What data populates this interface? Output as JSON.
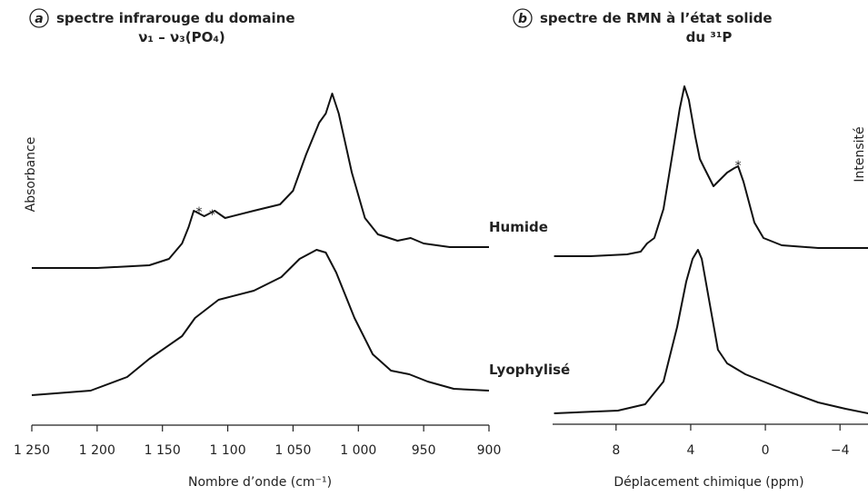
{
  "chart_data": [
    {
      "type": "line",
      "panel_label": "a",
      "title": [
        "spectre infrarouge du domaine",
        "ν₁ – ν₃(PO₄)"
      ],
      "xlabel": "Nombre d’onde (cm⁻¹)",
      "ylabel": "Absorbance",
      "xlim": [
        1250,
        900
      ],
      "ylim": [
        0,
        400
      ],
      "xticks": [
        {
          "value": 1250,
          "label": "1 250"
        },
        {
          "value": 1200,
          "label": "1 200"
        },
        {
          "value": 1150,
          "label": "1 150"
        },
        {
          "value": 1100,
          "label": "1 100"
        },
        {
          "value": 1050,
          "label": "1 050"
        },
        {
          "value": 1000,
          "label": "1 000"
        },
        950,
        900
      ],
      "series": [
        {
          "name": "Humide",
          "color": "#111",
          "x": [
            1250,
            1200,
            1160,
            1145,
            1135,
            1130,
            1126,
            1118,
            1110,
            1102,
            1080,
            1060,
            1050,
            1040,
            1030,
            1025,
            1020,
            1015,
            1005,
            995,
            985,
            970,
            960,
            950,
            930,
            900
          ],
          "values": [
            173,
            173,
            176,
            183,
            200,
            218,
            236,
            230,
            236,
            228,
            236,
            243,
            258,
            298,
            333,
            343,
            365,
            343,
            278,
            228,
            210,
            203,
            206,
            200,
            196,
            196
          ]
        },
        {
          "name": "Lyophylisé",
          "color": "#111",
          "x": [
            1250,
            1205,
            1177,
            1160,
            1135,
            1125,
            1107,
            1080,
            1059,
            1045,
            1032,
            1025,
            1017,
            1003,
            989,
            975,
            961,
            947,
            927,
            900
          ],
          "values": [
            33,
            38,
            53,
            73,
            98,
            118,
            138,
            148,
            163,
            183,
            193,
            190,
            168,
            118,
            78,
            60,
            56,
            48,
            40,
            38
          ]
        }
      ],
      "annotations": [
        {
          "text": "*",
          "x": 1122,
          "y": 248
        },
        {
          "text": "*",
          "x": 1112,
          "y": 245
        }
      ]
    },
    {
      "type": "line",
      "panel_label": "b",
      "title": [
        "spectre de RMN à l’état solide",
        "du ³¹P"
      ],
      "xlabel": "Déplacement chimique (ppm)",
      "ylabel": "Intensité",
      "xlim": [
        11.4,
        -5.5
      ],
      "ylim": [
        0,
        400
      ],
      "xticks": [
        8,
        4,
        0,
        {
          "value": -4,
          "label": "−4"
        }
      ],
      "series": [
        {
          "color": "#111",
          "x": [
            11.32,
            9.37,
            7.41,
            6.68,
            6.34,
            5.95,
            5.46,
            4.98,
            4.59,
            4.34,
            4.1,
            3.76,
            3.51,
            3.27,
            2.78,
            2.05,
            1.66,
            1.46,
            1.17,
            0.59,
            0.1,
            -0.88,
            -2.83,
            -5.51
          ],
          "values": [
            185,
            185,
            187,
            190,
            199,
            205,
            237,
            297,
            347,
            372,
            357,
            317,
            292,
            282,
            262,
            277,
            282,
            284,
            267,
            222,
            205,
            197,
            194,
            194
          ]
        },
        {
          "color": "#111",
          "x": [
            11.32,
            7.9,
            6.44,
            5.46,
            4.73,
            4.24,
            3.9,
            3.61,
            3.41,
            3.02,
            2.54,
            2.05,
            1.07,
            0.1,
            -1.37,
            -2.83,
            -4.29,
            -5.51
          ],
          "values": [
            12,
            15,
            22,
            47,
            107,
            157,
            182,
            192,
            182,
            137,
            82,
            67,
            55,
            47,
            35,
            24,
            17,
            12
          ]
        }
      ],
      "annotations": [
        {
          "text": "*",
          "x": 1.46,
          "y": 298
        }
      ]
    }
  ]
}
